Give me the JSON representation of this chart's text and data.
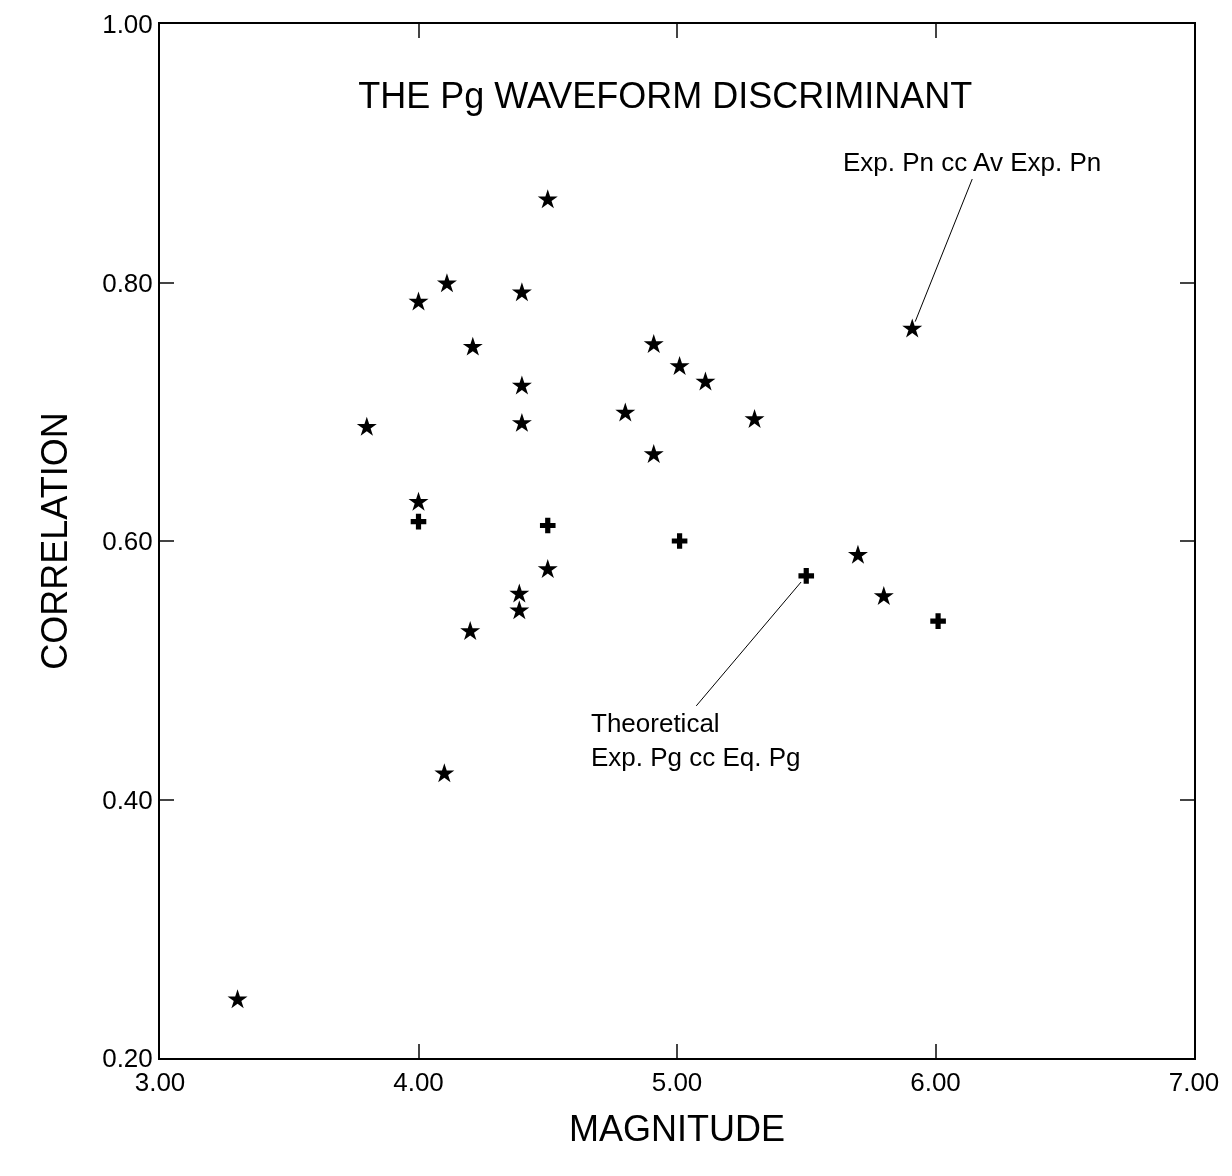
{
  "chart_data": {
    "type": "scatter",
    "title": "THE Pg WAVEFORM DISCRIMINANT",
    "xlabel": "MAGNITUDE",
    "ylabel": "CORRELATION",
    "xlim": [
      3,
      7
    ],
    "xticks": [
      {
        "value": 3,
        "label": "3.00"
      },
      {
        "value": 4,
        "label": "4.00"
      },
      {
        "value": 5,
        "label": "5.00"
      },
      {
        "value": 6,
        "label": "6.00"
      },
      {
        "value": 7,
        "label": "7.00"
      }
    ],
    "ylim": [
      0.2,
      1
    ],
    "yticks": [
      {
        "value": 0.2,
        "label": "0.20"
      },
      {
        "value": 0.4,
        "label": "0.40"
      },
      {
        "value": 0.6,
        "label": "0.60"
      },
      {
        "value": 0.8,
        "label": "0.80"
      },
      {
        "value": 1,
        "label": "1.00"
      }
    ],
    "grid": false,
    "series": [
      {
        "color": "#000000",
        "marker": "star",
        "x": [
          3.3,
          3.8,
          4.0,
          4.11,
          4.0,
          4.1,
          4.21,
          4.2,
          4.4,
          4.4,
          4.4,
          4.39,
          4.39,
          4.5,
          4.5,
          4.8,
          4.91,
          5.01,
          5.11,
          4.91,
          5.3,
          5.7,
          5.8,
          5.91
        ],
        "values": [
          0.245,
          0.688,
          0.785,
          0.799,
          0.63,
          0.42,
          0.75,
          0.53,
          0.792,
          0.72,
          0.691,
          0.559,
          0.546,
          0.864,
          0.578,
          0.699,
          0.752,
          0.735,
          0.723,
          0.667,
          0.694,
          0.589,
          0.557,
          0.764
        ]
      },
      {
        "color": "#000000",
        "marker": "cross",
        "x": [
          4.0,
          4.5,
          5.01,
          5.5,
          6.01
        ],
        "values": [
          0.615,
          0.612,
          0.6,
          0.573,
          0.538
        ]
      }
    ],
    "annotations": [
      {
        "text": "Exp. Pn cc Av Exp. Pn",
        "x": 5.91,
        "y": 0.764
      },
      {
        "text": "Theoretical\nExp. Pg cc Eq. Pg",
        "x": 5.5,
        "y": 0.573
      }
    ]
  }
}
